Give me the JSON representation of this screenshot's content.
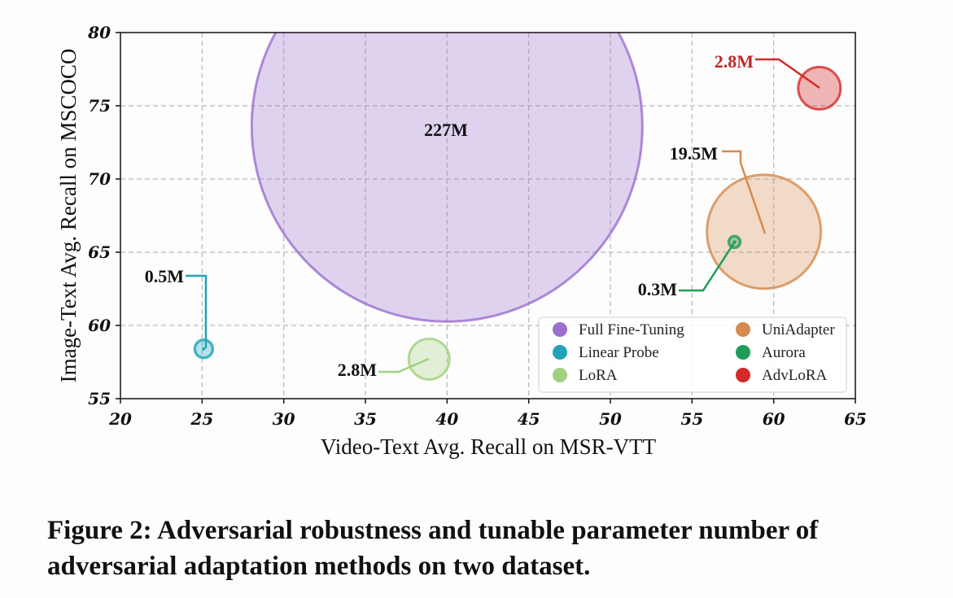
{
  "chart_data": {
    "type": "scatter",
    "xlabel": "Video-Text Avg. Recall on MSR-VTT",
    "ylabel": "Image-Text Avg. Recall on MSCOCO",
    "xlim": [
      20,
      65
    ],
    "ylim": [
      55,
      80
    ],
    "xticks": [
      20,
      25,
      30,
      35,
      40,
      45,
      50,
      55,
      60,
      65
    ],
    "yticks": [
      55,
      60,
      65,
      70,
      75,
      80
    ],
    "grid": true,
    "legend_position": "bottom-right",
    "series": [
      {
        "name": "Full Fine-Tuning",
        "x": 40.0,
        "y": 73.6,
        "params_label": "227M",
        "color": "#9b6fce"
      },
      {
        "name": "Linear Probe",
        "x": 25.1,
        "y": 58.4,
        "params_label": "0.5M",
        "color": "#22a3b8"
      },
      {
        "name": "LoRA",
        "x": 38.9,
        "y": 57.7,
        "params_label": "2.8M",
        "color": "#9fd17e"
      },
      {
        "name": "UniAdapter",
        "x": 59.4,
        "y": 66.4,
        "params_label": "19.5M",
        "color": "#d68a4e"
      },
      {
        "name": "Aurora",
        "x": 57.6,
        "y": 65.7,
        "params_label": "0.3M",
        "color": "#1f9d57"
      },
      {
        "name": "AdvLoRA",
        "x": 62.8,
        "y": 76.2,
        "params_label": "2.8M",
        "color": "#d42a2a"
      }
    ]
  },
  "caption": "Figure 2: Adversarial robustness and tunable parameter number of adversarial adaptation methods on two dataset."
}
